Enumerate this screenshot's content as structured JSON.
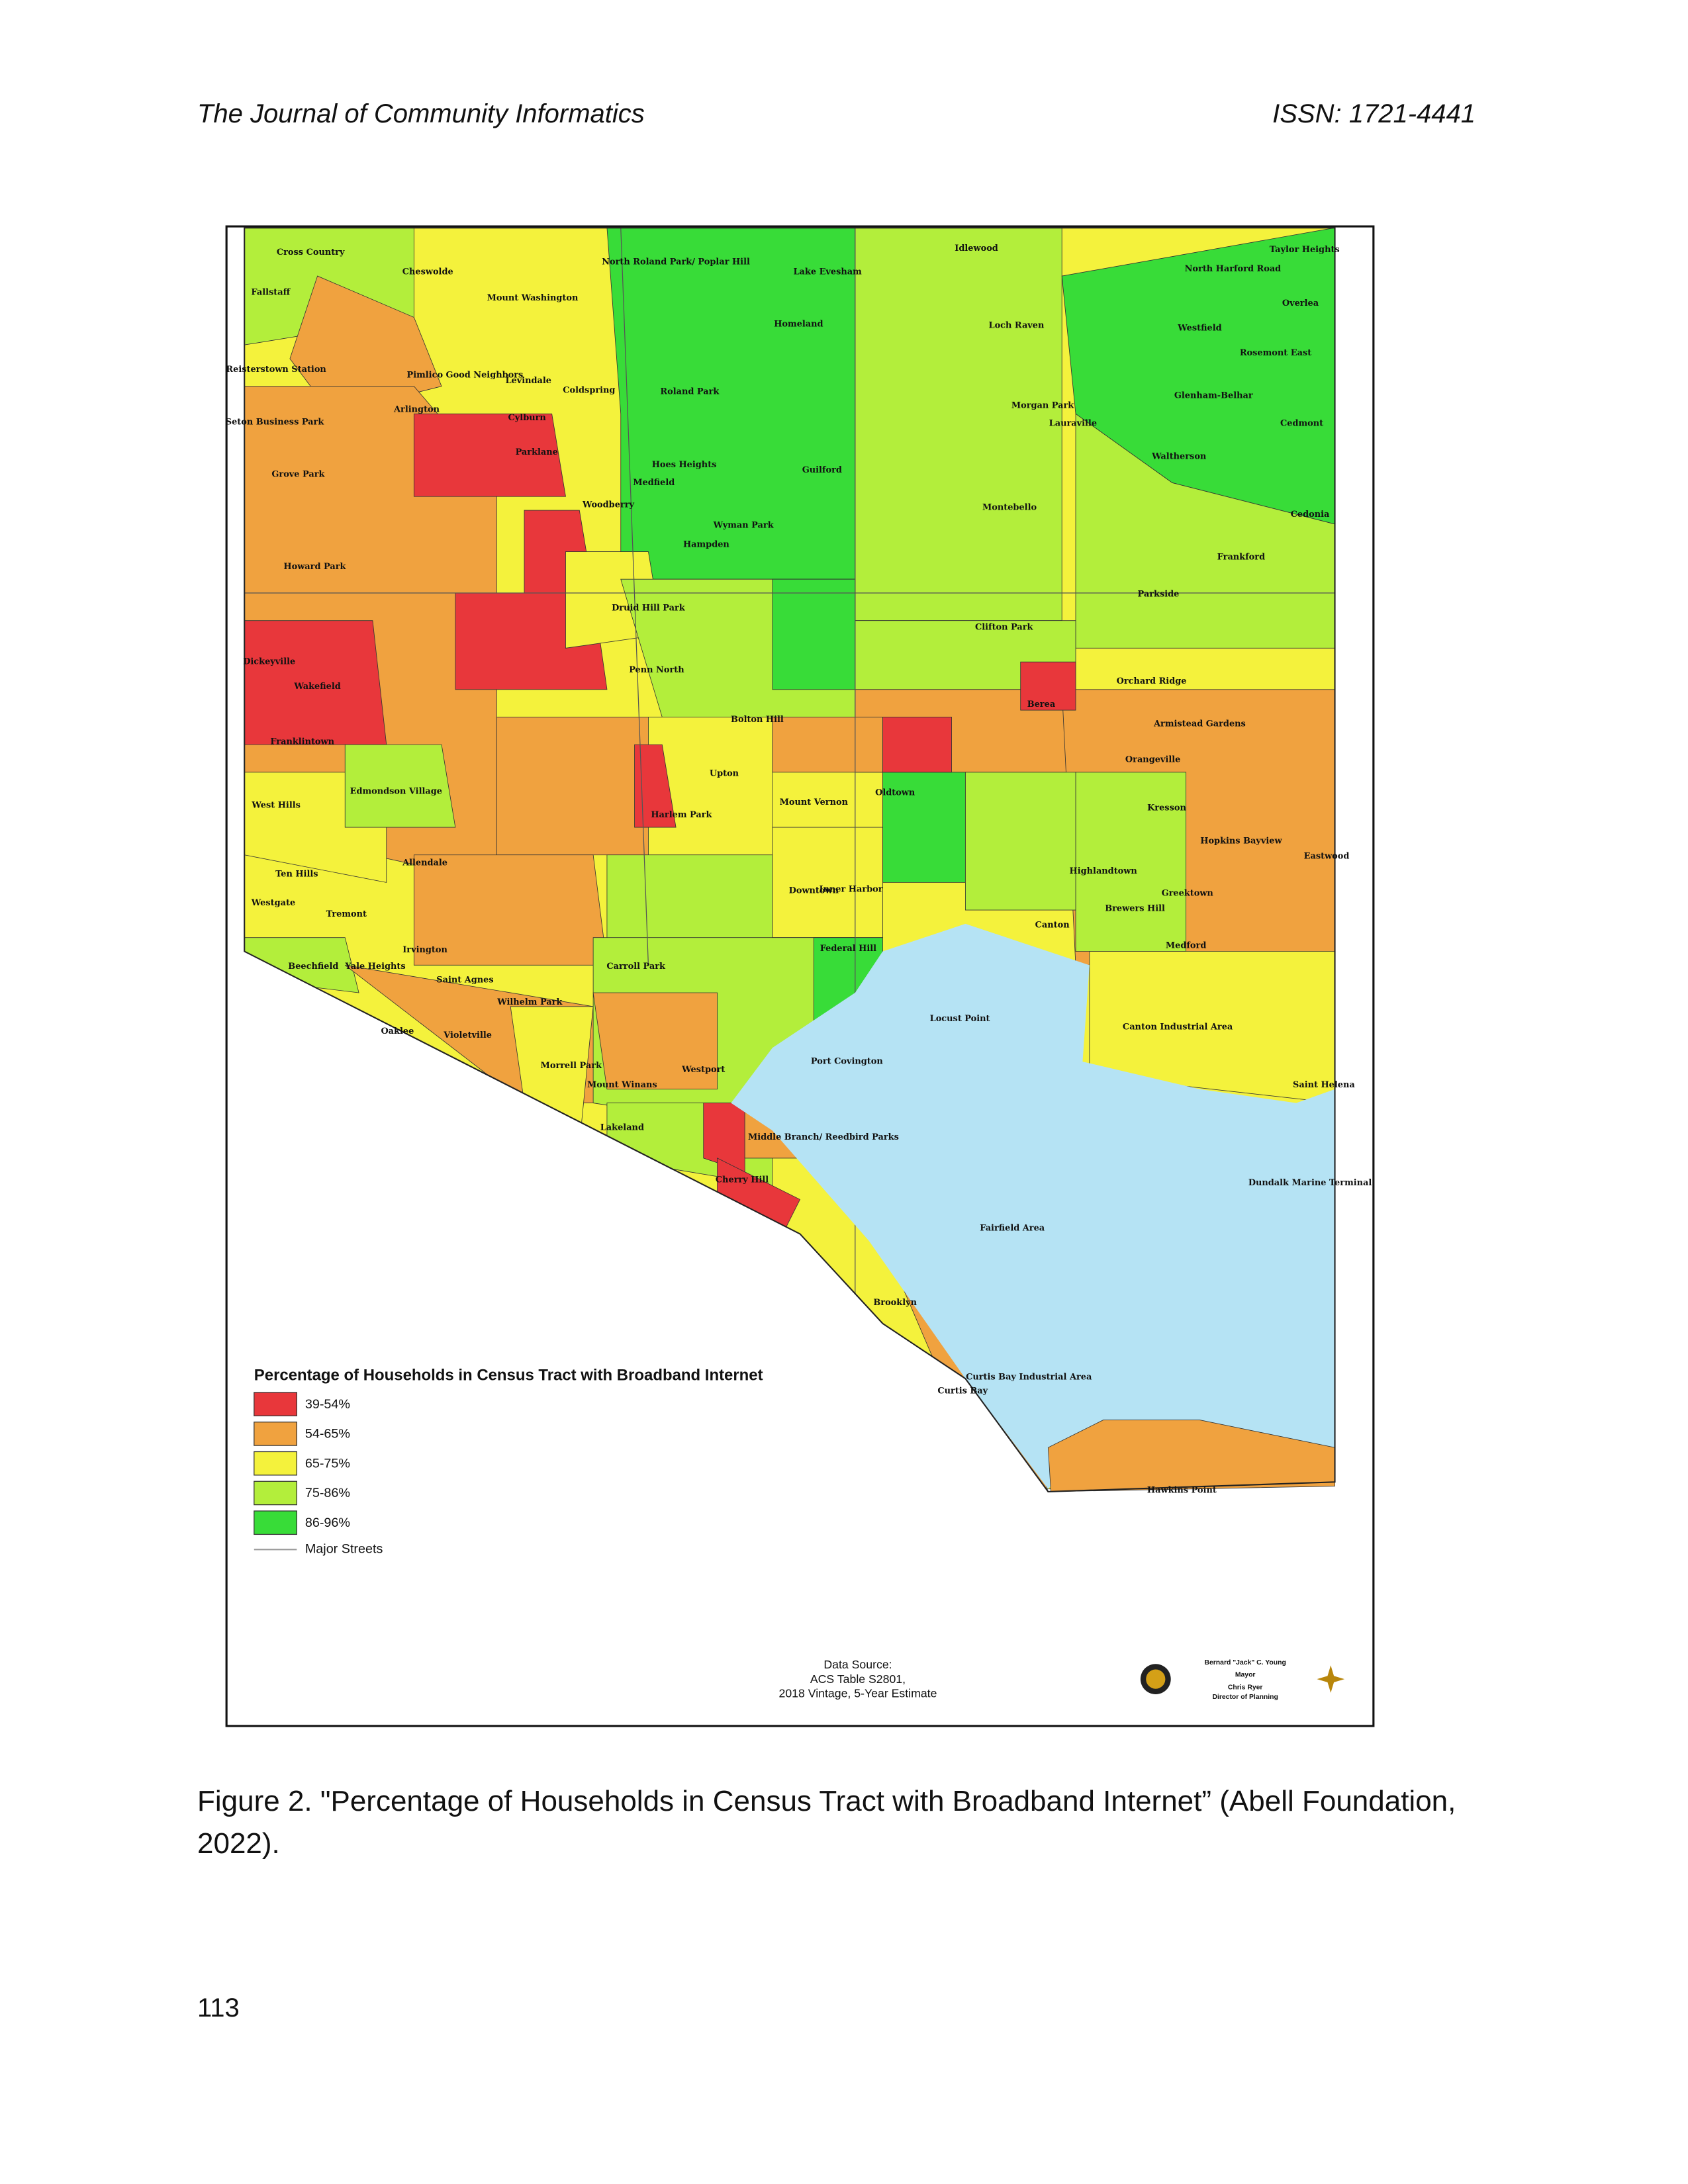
{
  "header": {
    "journal": "The Journal of Community Informatics",
    "issn": "ISSN: 1721-4441"
  },
  "figure": {
    "legend": {
      "title": "Percentage of Households in Census Tract with Broadband Internet",
      "items": [
        {
          "label": "39-54%",
          "color": "#e8373b"
        },
        {
          "label": "54-65%",
          "color": "#f0a23f"
        },
        {
          "label": "65-75%",
          "color": "#f4f23c"
        },
        {
          "label": "75-86%",
          "color": "#b3ee3b"
        },
        {
          "label": "86-96%",
          "color": "#38dc38"
        }
      ],
      "streets": "Major Streets"
    },
    "labels": [
      "Cross Country",
      "Cheswolde",
      "Fallstaff",
      "Mount Washington",
      "North Roland Park/ Poplar Hill",
      "Lake Evesham",
      "Idlewood",
      "Taylor Heights",
      "North Harford Road",
      "Overlea",
      "Westfield",
      "Reisterstown Station",
      "Pimlico Good Neighbors",
      "Levindale",
      "Coldspring",
      "Roland Park",
      "Homeland",
      "Loch Raven",
      "Rosemont East",
      "Arlington",
      "Cylburn",
      "Morgan Park",
      "Lauraville",
      "Glenham-Belhar",
      "Cedmont",
      "Seton Business Park",
      "Grove Park",
      "Parklane",
      "Medfield",
      "Hoes Heights",
      "Guilford",
      "Waltherson",
      "Cedonia",
      "Woodberry",
      "Wyman Park",
      "Hampden",
      "Montebello",
      "Frankford",
      "Howard Park",
      "Druid Hill Park",
      "Clifton Park",
      "Parkside",
      "Dickeyville",
      "Wakefield",
      "Franklintown",
      "Penn North",
      "Bolton Hill",
      "Orchard Ridge",
      "Armistead Gardens",
      "Edmondson Village",
      "West Hills",
      "Harlem Park",
      "Upton",
      "Mount Vernon",
      "Oldtown",
      "Berea",
      "Kresson",
      "Orangeville",
      "Ten Hills",
      "Allendale",
      "Downtown",
      "Inner Harbor",
      "Highlandtown",
      "Greektown",
      "Westgate",
      "Tremont",
      "Irvington",
      "Canton",
      "Brewers Hill",
      "Hopkins Bayview",
      "Eastwood",
      "Beechfield",
      "Yale Heights",
      "Saint Agnes",
      "Carroll Park",
      "Federal Hill",
      "Locust Point",
      "Medford",
      "Canton Industrial Area",
      "Oaklee",
      "Violetville",
      "Wilhelm Park",
      "Morrell Park",
      "Westport",
      "Port Covington",
      "Lakeland",
      "Mount Winans",
      "Saint Helena",
      "Middle Branch/ Reedbird Parks",
      "Cherry Hill",
      "Dundalk Marine Terminal",
      "Fairfield Area",
      "Brooklyn",
      "Curtis Bay",
      "Curtis Bay Industrial Area",
      "Hawkins Point"
    ],
    "source": [
      "Data Source:",
      "ACS Table S2801,",
      "2018 Vintage, 5-Year Estimate"
    ],
    "credits": [
      "Bernard \"Jack\" C. Young",
      "Mayor",
      "Chris Ryer",
      "Director of Planning"
    ]
  },
  "caption": "Figure 2. \"Percentage of Households in Census Tract with Broadband Internet” (Abell Foundation, 2022).",
  "page_number": "113"
}
